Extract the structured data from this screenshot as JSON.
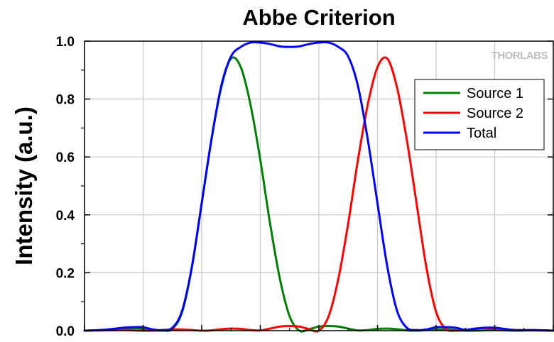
{
  "chart_data": {
    "type": "line",
    "title": "Abbe Criterion",
    "ylabel": "Intensity (a.u.)",
    "xlabel": "",
    "ylim": [
      0,
      1.0
    ],
    "yticks": [
      "0.0",
      "0.2",
      "0.4",
      "0.6",
      "0.8",
      "1.0"
    ],
    "xticks_labeled": false,
    "grid": true,
    "legend_position": "top-right",
    "watermark": "THORLABS",
    "x": [
      -6.0,
      -5.5,
      -5.0,
      -4.75,
      -4.5,
      -4.25,
      -4.0,
      -3.75,
      -3.5,
      -3.25,
      -3.0,
      -2.75,
      -2.5,
      -2.25,
      -2.0,
      -1.75,
      -1.5,
      -1.25,
      -1.0,
      -0.75,
      -0.5,
      -0.25,
      0.0,
      0.25,
      0.5,
      0.75,
      1.0,
      1.25,
      1.5,
      1.75,
      2.0,
      2.25,
      2.5,
      2.75,
      3.0,
      3.25,
      3.5,
      3.75,
      4.0,
      4.25,
      4.5,
      4.75,
      5.0,
      5.5,
      6.0
    ],
    "series": [
      {
        "name": "Source 1",
        "color": "#008000",
        "values": [
          0.0,
          0.002,
          0.008,
          0.009,
          0.007,
          0.002,
          0.0,
          0.006,
          0.065,
          0.22,
          0.44,
          0.66,
          0.84,
          0.94,
          0.91,
          0.78,
          0.59,
          0.37,
          0.18,
          0.05,
          0.0,
          0.005,
          0.014,
          0.016,
          0.014,
          0.007,
          0.001,
          0.002,
          0.006,
          0.007,
          0.005,
          0.001,
          0.0,
          0.002,
          0.004,
          0.004,
          0.002,
          0.0,
          0.0,
          0.001,
          0.002,
          0.001,
          0.0,
          0.001,
          0.0
        ]
      },
      {
        "name": "Source 2",
        "color": "#ff0000",
        "values": [
          0.0,
          0.001,
          0.002,
          0.001,
          0.0,
          0.0,
          0.002,
          0.004,
          0.004,
          0.002,
          0.0,
          0.001,
          0.005,
          0.007,
          0.006,
          0.002,
          0.001,
          0.007,
          0.014,
          0.016,
          0.014,
          0.005,
          0.0,
          0.05,
          0.18,
          0.37,
          0.59,
          0.78,
          0.91,
          0.94,
          0.84,
          0.66,
          0.44,
          0.22,
          0.065,
          0.006,
          0.0,
          0.002,
          0.007,
          0.009,
          0.008,
          0.005,
          0.002,
          0.001,
          0.0
        ]
      },
      {
        "name": "Total",
        "color": "#0000ff",
        "values": [
          0.0,
          0.003,
          0.01,
          0.012,
          0.012,
          0.004,
          0.002,
          0.01,
          0.069,
          0.222,
          0.44,
          0.661,
          0.845,
          0.947,
          0.98,
          0.995,
          0.995,
          0.99,
          0.982,
          0.98,
          0.982,
          0.99,
          0.995,
          0.995,
          0.98,
          0.947,
          0.845,
          0.661,
          0.44,
          0.222,
          0.069,
          0.01,
          0.002,
          0.004,
          0.012,
          0.012,
          0.01,
          0.003,
          0.007,
          0.01,
          0.01,
          0.006,
          0.002,
          0.002,
          0.0
        ]
      }
    ]
  }
}
